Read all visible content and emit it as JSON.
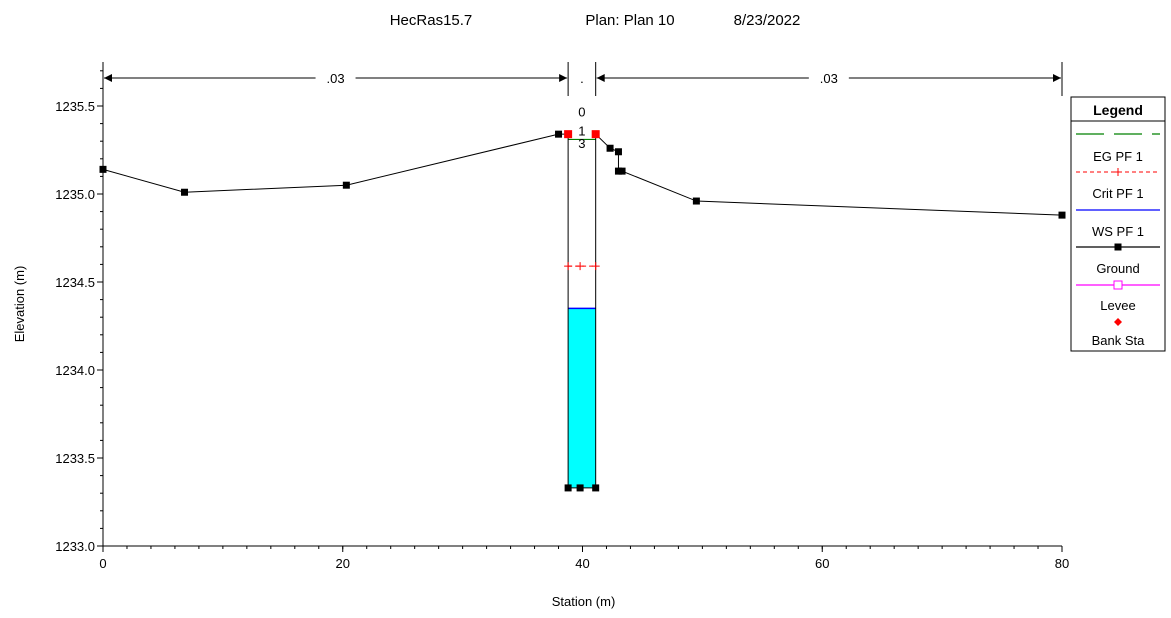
{
  "chart_data": {
    "type": "line",
    "title_parts": [
      "HecRas15.7",
      "Plan: Plan 10",
      "8/23/2022"
    ],
    "xlabel": "Station (m)",
    "ylabel": "Elevation (m)",
    "xlim": [
      0,
      80
    ],
    "ylim": [
      1233.0,
      1235.75
    ],
    "x_ticks": [
      0,
      20,
      40,
      60,
      80
    ],
    "x_tick_labels": [
      "0",
      "20",
      "40",
      "60",
      "80"
    ],
    "y_ticks": [
      1233.0,
      1233.5,
      1234.0,
      1234.5,
      1235.0,
      1235.5
    ],
    "y_tick_labels": [
      "1233.0",
      "1233.5",
      "1234.0",
      "1234.5",
      "1235.0",
      "1235.5"
    ],
    "ground": {
      "x": [
        0,
        6.8,
        20.3,
        38.0,
        38.8,
        38.8,
        39.8,
        41.1,
        41.1,
        42.3,
        43.0,
        43.0,
        43.3,
        49.5,
        80
      ],
      "y": [
        1235.14,
        1235.01,
        1235.05,
        1235.34,
        1235.34,
        1233.33,
        1233.33,
        1233.33,
        1235.34,
        1235.26,
        1235.24,
        1235.13,
        1235.13,
        1234.96,
        1234.88
      ]
    },
    "bank_stations": {
      "x": [
        38.8,
        41.1
      ],
      "y": [
        1235.34,
        1235.34
      ]
    },
    "water_surface": {
      "x": [
        38.8,
        41.1
      ],
      "y": [
        1234.35,
        1234.35
      ],
      "fill_bottom": 1233.33
    },
    "critical": {
      "x": [
        38.8,
        39.8,
        41.1
      ],
      "y": [
        1234.59,
        1234.59,
        1234.59
      ]
    },
    "energy_grade": {
      "x": [
        38.8,
        41.1
      ],
      "y": [
        1235.31,
        1235.31
      ]
    },
    "n_values": [
      {
        "label": ".03",
        "from": 0,
        "to": 38.8
      },
      {
        "label": ".",
        "from": 38.8,
        "to": 41.1
      },
      {
        "label": ".03",
        "from": 41.1,
        "to": 80
      }
    ],
    "section_labels": [
      {
        "label": "0",
        "y": 1235.47
      },
      {
        "label": "1",
        "y": 1235.36
      },
      {
        "label": "3",
        "y": 1235.29
      }
    ],
    "legend": {
      "title": "Legend",
      "position": "right",
      "items": [
        {
          "label": "EG PF 1",
          "color": "#008000",
          "style": "long-dash",
          "marker": "none"
        },
        {
          "label": "Crit PF 1",
          "color": "#ff0000",
          "style": "dashed",
          "marker": "plus"
        },
        {
          "label": "WS PF 1",
          "color": "#0000ff",
          "style": "solid",
          "marker": "none"
        },
        {
          "label": "Ground",
          "color": "#000000",
          "style": "solid",
          "marker": "square"
        },
        {
          "label": "Levee",
          "color": "#ff00ff",
          "style": "solid",
          "marker": "open-square"
        },
        {
          "label": "Bank Sta",
          "color": "#ff0000",
          "style": "none",
          "marker": "diamond"
        }
      ]
    },
    "colors": {
      "water_fill": "#00ffff",
      "water_line": "#0000ff",
      "ground": "#000000",
      "bank": "#ff0000",
      "crit": "#ff0000",
      "eg": "#008000"
    }
  }
}
